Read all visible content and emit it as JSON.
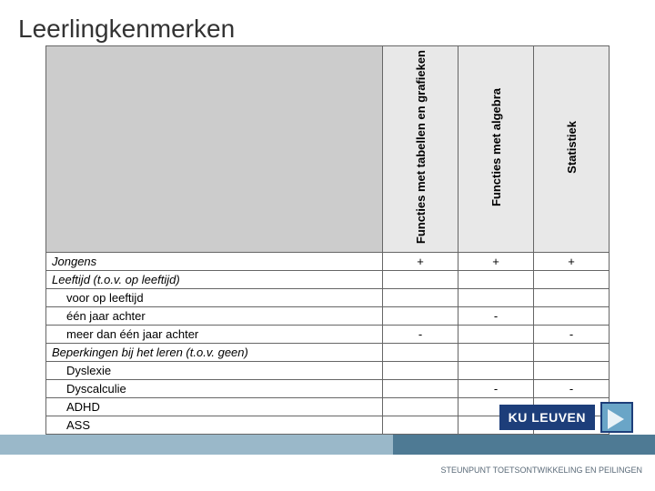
{
  "title": "Leerlingkenmerken",
  "title_fontsize": 28,
  "title_color": "#333333",
  "title_weight": "400",
  "table": {
    "header_bg": "#e8e8e8",
    "corner_bg": "#cccccc",
    "border_color": "#666666",
    "row_fontsize": 13,
    "header_fontsize": 13,
    "columns": [
      "Functies met tabellen en grafieken",
      "Functies met algebra",
      "Statistiek"
    ],
    "rows": [
      {
        "label": "Jongens",
        "italic": true,
        "indent": false,
        "cells": [
          "+",
          "+",
          "+"
        ]
      },
      {
        "label": "Leeftijd (t.o.v. op leeftijd)",
        "italic": true,
        "indent": false,
        "cells": [
          "",
          "",
          ""
        ]
      },
      {
        "label": "voor op leeftijd",
        "italic": false,
        "indent": true,
        "cells": [
          "",
          "",
          ""
        ]
      },
      {
        "label": "één jaar achter",
        "italic": false,
        "indent": true,
        "cells": [
          "",
          "-",
          ""
        ]
      },
      {
        "label": "meer dan één jaar achter",
        "italic": false,
        "indent": true,
        "cells": [
          "-",
          "",
          "-"
        ]
      },
      {
        "label": "Beperkingen bij het leren (t.o.v. geen)",
        "italic": true,
        "indent": false,
        "cells": [
          "",
          "",
          ""
        ]
      },
      {
        "label": "Dyslexie",
        "italic": false,
        "indent": true,
        "cells": [
          "",
          "",
          ""
        ]
      },
      {
        "label": "Dyscalculie",
        "italic": false,
        "indent": true,
        "cells": [
          "",
          "-",
          "-"
        ]
      },
      {
        "label": "ADHD",
        "italic": false,
        "indent": true,
        "cells": [
          "",
          "",
          ""
        ]
      },
      {
        "label": "ASS",
        "italic": false,
        "indent": true,
        "cells": [
          "",
          "",
          ""
        ]
      }
    ]
  },
  "footer": {
    "text": "STEUNPUNT TOETSONTWIKKELING EN PEILINGEN",
    "text_color": "#5a6a78",
    "text_fontsize": 9,
    "band_light": "#9ab8c9",
    "band_dark": "#4e7a94"
  },
  "logos": {
    "ku_text": "KU LEUVEN",
    "ku_bg": "#1d3e7a",
    "ku_fontsize": 14,
    "badge_bg": "#6aa5c7",
    "badge_border": "#1d3e7a"
  }
}
